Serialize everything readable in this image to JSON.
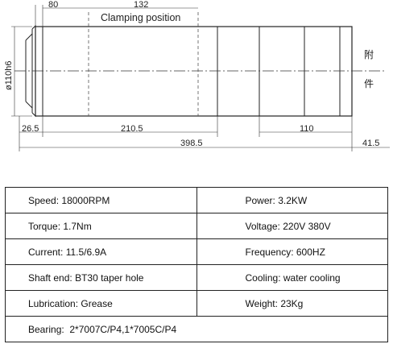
{
  "drawing": {
    "dim_top_left": "80",
    "dim_top_mid": "132",
    "clamping_label": "Clamping position",
    "dim_diameter": "ø110h6",
    "dim_bottom_a": "26.5",
    "dim_bottom_b": "210.5",
    "dim_bottom_c": "110",
    "dim_total": "398.5",
    "dim_end": "41.5",
    "side_text_1": "附",
    "side_text_2": "件"
  },
  "specs": {
    "rows": [
      {
        "left_label": "Speed:",
        "left_value": "18000RPM",
        "right_label": "Power:",
        "right_value": "3.2KW"
      },
      {
        "left_label": "Torque:",
        "left_value": "1.7Nm",
        "right_label": "Voltage:",
        "right_value": "220V 380V"
      },
      {
        "left_label": "Current:",
        "left_value": "11.5/6.9A",
        "right_label": "Frequency:",
        "right_value": "600HZ"
      },
      {
        "left_label": "Shaft end:",
        "left_value": "BT30 taper hole",
        "right_label": "Cooling:",
        "right_value": "water cooling"
      },
      {
        "left_label": "Lubrication:",
        "left_value": "Grease",
        "right_label": "Weight:",
        "right_value": "23Kg"
      }
    ],
    "bearing_label": "Bearing:",
    "bearing_value": "2*7007C/P4,1*7005C/P4"
  }
}
